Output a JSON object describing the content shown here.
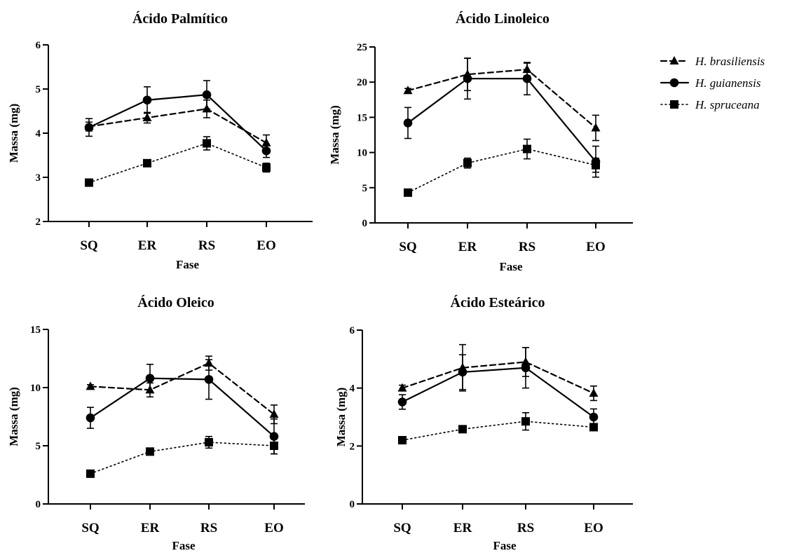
{
  "chart_data": [
    {
      "type": "line",
      "title": "Ácido Palmítico",
      "xlabel": "Fase",
      "ylabel": "Massa (mg)",
      "categories": [
        "SQ",
        "ER",
        "RS",
        "EO"
      ],
      "ylim": [
        2,
        6
      ],
      "yticks": [
        2,
        3,
        4,
        5,
        6
      ],
      "series": [
        {
          "name": "H. brasiliensis",
          "marker": "triangle",
          "line": "dashed",
          "values": [
            4.15,
            4.35,
            4.55,
            3.78
          ],
          "errors": [
            0.1,
            0.12,
            0.2,
            0.18
          ]
        },
        {
          "name": "H. guianensis",
          "marker": "circle",
          "line": "solid",
          "values": [
            4.13,
            4.75,
            4.87,
            3.6
          ],
          "errors": [
            0.2,
            0.3,
            0.32,
            0.15
          ]
        },
        {
          "name": "H. spruceana",
          "marker": "square",
          "line": "dotted",
          "values": [
            2.88,
            3.32,
            3.77,
            3.22
          ],
          "errors": [
            0.04,
            0.06,
            0.15,
            0.1
          ]
        }
      ]
    },
    {
      "type": "line",
      "title": "Ácido Linoleico",
      "xlabel": "Fase",
      "ylabel": "Massa (mg)",
      "categories": [
        "SQ",
        "ER",
        "RS",
        "EO"
      ],
      "ylim": [
        0,
        25
      ],
      "yticks": [
        0,
        5,
        10,
        15,
        20,
        25
      ],
      "series": [
        {
          "name": "H. brasiliensis",
          "marker": "triangle",
          "line": "dashed",
          "values": [
            18.8,
            21.1,
            21.8,
            13.5
          ],
          "errors": [
            0.3,
            2.3,
            0.9,
            1.8
          ]
        },
        {
          "name": "H. guianensis",
          "marker": "circle",
          "line": "solid",
          "values": [
            14.2,
            20.5,
            20.5,
            8.7
          ],
          "errors": [
            2.2,
            2.9,
            2.3,
            2.2
          ]
        },
        {
          "name": "H. spruceana",
          "marker": "square",
          "line": "dotted",
          "values": [
            4.3,
            8.5,
            10.5,
            8.2
          ],
          "errors": [
            0.3,
            0.7,
            1.4,
            1.0
          ]
        }
      ]
    },
    {
      "type": "line",
      "title": "Ácido Oleico",
      "xlabel": "Fase",
      "ylabel": "Massa (mg)",
      "categories": [
        "SQ",
        "ER",
        "RS",
        "EO"
      ],
      "ylim": [
        0,
        15
      ],
      "yticks": [
        0,
        5,
        10,
        15
      ],
      "series": [
        {
          "name": "H. brasiliensis",
          "marker": "triangle",
          "line": "dashed",
          "values": [
            10.1,
            9.8,
            12.1,
            7.7
          ],
          "errors": [
            0.15,
            0.6,
            0.6,
            0.8
          ]
        },
        {
          "name": "H. guianensis",
          "marker": "circle",
          "line": "solid",
          "values": [
            7.4,
            10.8,
            10.7,
            5.8
          ],
          "errors": [
            0.9,
            1.2,
            1.7,
            1.5
          ]
        },
        {
          "name": "H. spruceana",
          "marker": "square",
          "line": "dotted",
          "values": [
            2.6,
            4.5,
            5.3,
            5.0
          ],
          "errors": [
            0.1,
            0.3,
            0.5,
            0.7
          ]
        }
      ]
    },
    {
      "type": "line",
      "title": "Ácido Esteárico",
      "xlabel": "Fase",
      "ylabel": "Massa (mg)",
      "categories": [
        "SQ",
        "ER",
        "RS",
        "EO"
      ],
      "ylim": [
        0,
        6
      ],
      "yticks": [
        0,
        2,
        4,
        6
      ],
      "series": [
        {
          "name": "H. brasiliensis",
          "marker": "triangle",
          "line": "dashed",
          "values": [
            4.0,
            4.7,
            4.9,
            3.82
          ],
          "errors": [
            0.1,
            0.8,
            0.5,
            0.25
          ]
        },
        {
          "name": "H. guianensis",
          "marker": "circle",
          "line": "solid",
          "values": [
            3.52,
            4.55,
            4.7,
            3.0
          ],
          "errors": [
            0.25,
            0.6,
            0.7,
            0.28
          ]
        },
        {
          "name": "H. spruceana",
          "marker": "square",
          "line": "dotted",
          "values": [
            2.2,
            2.58,
            2.85,
            2.65
          ],
          "errors": [
            0.05,
            0.06,
            0.3,
            0.1
          ]
        }
      ]
    }
  ],
  "legend": {
    "position": "top-right",
    "items": [
      {
        "label": "H. brasiliensis",
        "marker": "triangle",
        "line": "dashed"
      },
      {
        "label": "H. guianensis",
        "marker": "circle",
        "line": "solid"
      },
      {
        "label": "H. spruceana",
        "marker": "square",
        "line": "dotted"
      }
    ]
  }
}
